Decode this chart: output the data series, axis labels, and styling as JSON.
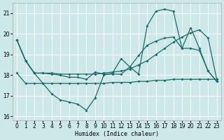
{
  "xlabel": "Humidex (Indice chaleur)",
  "ylabel": "",
  "xlim": [
    -0.5,
    23.5
  ],
  "ylim": [
    15.8,
    21.5
  ],
  "yticks": [
    16,
    17,
    18,
    19,
    20,
    21
  ],
  "xticks": [
    0,
    1,
    2,
    3,
    4,
    5,
    6,
    7,
    8,
    9,
    10,
    11,
    12,
    13,
    14,
    15,
    16,
    17,
    18,
    19,
    20,
    21,
    22,
    23
  ],
  "bg_color": "#cce8e8",
  "line_color": "#1a6b6b",
  "grid_color": "#ffffff",
  "line1": {
    "x": [
      0,
      1,
      2,
      3,
      4,
      5,
      6,
      7,
      8,
      9,
      10,
      11,
      12,
      13,
      14,
      15,
      16,
      17,
      18,
      19,
      20,
      21,
      22,
      23
    ],
    "y": [
      19.7,
      18.7,
      18.1,
      17.6,
      17.1,
      16.8,
      16.7,
      16.6,
      16.3,
      16.9,
      18.0,
      18.1,
      18.8,
      18.4,
      18.05,
      20.4,
      21.1,
      21.2,
      21.1,
      19.3,
      20.3,
      19.3,
      18.2,
      17.7
    ]
  },
  "line2": {
    "x": [
      0,
      1,
      2,
      3,
      4,
      5,
      6,
      7,
      8,
      9,
      10,
      11,
      12,
      13,
      14,
      15,
      16,
      17,
      18,
      19,
      20,
      21,
      22,
      23
    ],
    "y": [
      19.7,
      18.7,
      18.1,
      18.1,
      18.05,
      18.0,
      17.9,
      17.9,
      17.8,
      18.15,
      18.05,
      18.05,
      18.05,
      18.4,
      18.95,
      19.45,
      19.65,
      19.8,
      19.85,
      19.3,
      19.3,
      19.2,
      18.2,
      17.7
    ]
  },
  "line3": {
    "x": [
      0,
      1,
      2,
      3,
      4,
      5,
      6,
      7,
      8,
      9,
      10,
      11,
      12,
      13,
      14,
      15,
      16,
      17,
      18,
      19,
      20,
      21,
      22,
      23
    ],
    "y": [
      19.7,
      18.7,
      18.1,
      18.1,
      18.1,
      18.05,
      18.05,
      18.05,
      18.05,
      18.05,
      18.1,
      18.15,
      18.2,
      18.3,
      18.5,
      18.7,
      19.0,
      19.3,
      19.6,
      19.85,
      20.05,
      20.2,
      19.8,
      17.8
    ]
  },
  "line4": {
    "x": [
      0,
      1,
      2,
      3,
      4,
      5,
      6,
      7,
      8,
      9,
      10,
      11,
      12,
      13,
      14,
      15,
      16,
      17,
      18,
      19,
      20,
      21,
      22,
      23
    ],
    "y": [
      18.1,
      17.6,
      17.6,
      17.6,
      17.6,
      17.6,
      17.6,
      17.6,
      17.6,
      17.6,
      17.6,
      17.65,
      17.65,
      17.65,
      17.7,
      17.7,
      17.75,
      17.75,
      17.8,
      17.8,
      17.8,
      17.8,
      17.8,
      17.8
    ]
  }
}
